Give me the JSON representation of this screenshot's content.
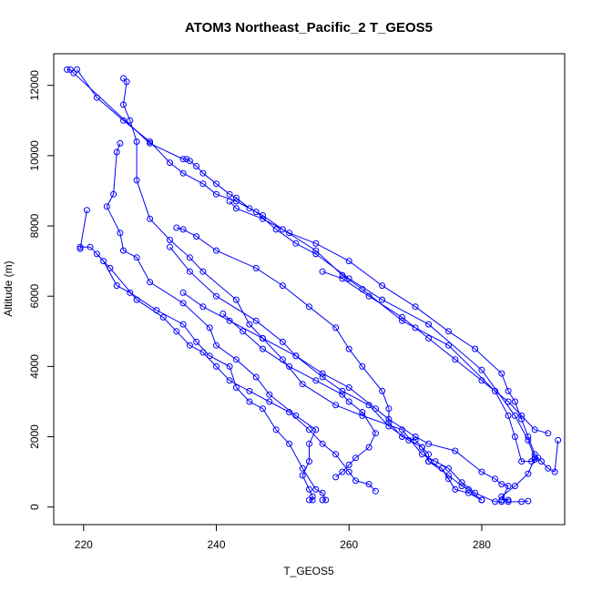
{
  "chart_data": {
    "type": "line",
    "title": "ATOM3 Northeast_Pacific_2 T_GEOS5",
    "xlabel": "T_GEOS5",
    "ylabel": "Altitude (m)",
    "xlim": [
      215.5,
      292.5
    ],
    "ylim": [
      -500,
      12900
    ],
    "x_ticks": [
      220,
      240,
      260,
      280
    ],
    "y_ticks": [
      0,
      2000,
      4000,
      6000,
      8000,
      10000,
      12000
    ],
    "grid": false,
    "legend": "none",
    "color": "#0000ff",
    "series": [
      {
        "points": [
          [
            217.5,
            12450
          ],
          [
            218,
            12450
          ],
          [
            218.5,
            12350
          ],
          [
            230,
            10350
          ],
          [
            235,
            9900
          ],
          [
            235.5,
            9900
          ],
          [
            236,
            9850
          ],
          [
            237,
            9700
          ],
          [
            238,
            9500
          ],
          [
            240,
            9200
          ],
          [
            242,
            8900
          ],
          [
            243,
            8800
          ],
          [
            245,
            8500
          ],
          [
            247,
            8300
          ],
          [
            250,
            7900
          ],
          [
            255,
            7300
          ],
          [
            259,
            6600
          ],
          [
            262,
            6200
          ],
          [
            268,
            5300
          ],
          [
            270,
            5100
          ],
          [
            275,
            4600
          ],
          [
            282,
            3300
          ],
          [
            284,
            2600
          ],
          [
            285,
            2000
          ],
          [
            286,
            1300
          ],
          [
            287.5,
            1300
          ],
          [
            288,
            1350
          ],
          [
            288.5,
            1400
          ]
        ]
      },
      {
        "points": [
          [
            219,
            12450
          ],
          [
            222,
            11650
          ],
          [
            226,
            11000
          ],
          [
            230,
            10400
          ],
          [
            233,
            9800
          ],
          [
            235,
            9500
          ],
          [
            238,
            9200
          ],
          [
            240,
            8900
          ],
          [
            243,
            8700
          ],
          [
            246,
            8400
          ],
          [
            249,
            7900
          ],
          [
            252,
            7500
          ],
          [
            255,
            7200
          ],
          [
            260,
            6500
          ],
          [
            265,
            5900
          ],
          [
            272,
            5200
          ],
          [
            280,
            3900
          ],
          [
            285,
            2600
          ],
          [
            287,
            1900
          ],
          [
            288,
            1400
          ],
          [
            287,
            950
          ],
          [
            285,
            600
          ],
          [
            283,
            300
          ],
          [
            284,
            150
          ],
          [
            286,
            150
          ],
          [
            287,
            170
          ]
        ]
      },
      {
        "points": [
          [
            226,
            12200
          ],
          [
            226.5,
            12100
          ],
          [
            226,
            11450
          ],
          [
            227,
            11000
          ],
          [
            228,
            10400
          ],
          [
            228,
            9300
          ],
          [
            230,
            8200
          ],
          [
            233,
            7600
          ],
          [
            236,
            7100
          ],
          [
            238,
            6700
          ],
          [
            243,
            5900
          ],
          [
            245,
            5200
          ],
          [
            247,
            4800
          ],
          [
            250,
            4200
          ],
          [
            253,
            3500
          ],
          [
            258,
            2900
          ],
          [
            262,
            2600
          ],
          [
            268,
            2200
          ],
          [
            271,
            1500
          ],
          [
            273,
            1300
          ],
          [
            275,
            1100
          ],
          [
            277,
            700
          ],
          [
            279,
            400
          ],
          [
            282,
            150
          ],
          [
            283,
            150
          ]
        ]
      },
      {
        "points": [
          [
            225.5,
            10350
          ],
          [
            225,
            10100
          ],
          [
            224.5,
            8900
          ],
          [
            223.5,
            8550
          ],
          [
            225.5,
            7800
          ],
          [
            226,
            7300
          ],
          [
            228,
            7100
          ],
          [
            230,
            6400
          ],
          [
            235,
            5800
          ],
          [
            239,
            5100
          ],
          [
            240,
            4600
          ],
          [
            243,
            4200
          ],
          [
            246,
            3700
          ],
          [
            248,
            3200
          ],
          [
            252,
            2600
          ],
          [
            255,
            2200
          ],
          [
            254,
            1800
          ],
          [
            254,
            1300
          ],
          [
            253,
            900
          ],
          [
            254,
            500
          ],
          [
            254.5,
            300
          ],
          [
            254.5,
            200
          ],
          [
            254,
            200
          ]
        ]
      },
      {
        "points": [
          [
            220.5,
            8450
          ],
          [
            219.5,
            7350
          ],
          [
            219.5,
            7400
          ],
          [
            221,
            7400
          ],
          [
            223,
            7000
          ],
          [
            225,
            6300
          ],
          [
            227,
            6100
          ],
          [
            231,
            5600
          ],
          [
            235,
            5200
          ],
          [
            237,
            4700
          ],
          [
            239,
            4300
          ],
          [
            242,
            4000
          ],
          [
            243,
            3400
          ],
          [
            245,
            3000
          ],
          [
            247,
            2800
          ],
          [
            249,
            2200
          ],
          [
            251,
            1800
          ],
          [
            253,
            1100
          ],
          [
            255,
            500
          ],
          [
            256,
            400
          ],
          [
            256.5,
            200
          ],
          [
            256,
            200
          ]
        ]
      },
      {
        "points": [
          [
            222,
            7200
          ],
          [
            224,
            6800
          ],
          [
            228,
            5900
          ],
          [
            232,
            5400
          ],
          [
            234,
            5000
          ],
          [
            236,
            4600
          ],
          [
            238,
            4400
          ],
          [
            240,
            4000
          ],
          [
            242,
            3600
          ],
          [
            245,
            3300
          ],
          [
            248,
            3000
          ],
          [
            251,
            2700
          ],
          [
            254,
            2200
          ],
          [
            256,
            1800
          ],
          [
            258,
            1500
          ],
          [
            260,
            1000
          ],
          [
            261,
            750
          ],
          [
            263,
            650
          ],
          [
            264,
            450
          ]
        ]
      },
      {
        "points": [
          [
            234,
            7950
          ],
          [
            235,
            7900
          ],
          [
            237,
            7700
          ],
          [
            240,
            7300
          ],
          [
            246,
            6800
          ],
          [
            250,
            6300
          ],
          [
            254,
            5700
          ],
          [
            258,
            5100
          ],
          [
            260,
            4500
          ],
          [
            262,
            4000
          ],
          [
            265,
            3300
          ],
          [
            266,
            2800
          ],
          [
            266,
            2400
          ],
          [
            268,
            2000
          ],
          [
            270,
            1900
          ],
          [
            271,
            1700
          ],
          [
            272,
            1300
          ],
          [
            275,
            900
          ],
          [
            277,
            600
          ],
          [
            278,
            500
          ],
          [
            280,
            200
          ]
        ]
      },
      {
        "points": [
          [
            235,
            6100
          ],
          [
            238,
            5700
          ],
          [
            242,
            5300
          ],
          [
            247,
            4800
          ],
          [
            252,
            4300
          ],
          [
            256,
            3700
          ],
          [
            259,
            3300
          ],
          [
            263,
            2900
          ],
          [
            266,
            2300
          ],
          [
            269,
            1900
          ],
          [
            271,
            1700
          ],
          [
            272,
            1500
          ],
          [
            272,
            1300
          ],
          [
            274,
            1100
          ],
          [
            275,
            800
          ],
          [
            276,
            500
          ],
          [
            278,
            400
          ],
          [
            280,
            200
          ]
        ]
      },
      {
        "points": [
          [
            241,
            5500
          ],
          [
            244,
            5000
          ],
          [
            247,
            4500
          ],
          [
            251,
            4000
          ],
          [
            255,
            3600
          ],
          [
            259,
            3200
          ],
          [
            260,
            3000
          ],
          [
            262,
            2700
          ],
          [
            264,
            2100
          ],
          [
            263,
            1700
          ],
          [
            261,
            1400
          ],
          [
            260,
            1200
          ],
          [
            259,
            1000
          ],
          [
            258,
            850
          ]
        ]
      },
      {
        "points": [
          [
            233,
            7400
          ],
          [
            236,
            6700
          ],
          [
            240,
            6000
          ],
          [
            246,
            5300
          ],
          [
            250,
            4700
          ],
          [
            252,
            4300
          ],
          [
            256,
            3800
          ],
          [
            260,
            3400
          ],
          [
            264,
            2800
          ],
          [
            266,
            2500
          ],
          [
            270,
            2000
          ],
          [
            272,
            1800
          ],
          [
            276,
            1600
          ],
          [
            280,
            1000
          ],
          [
            282,
            800
          ],
          [
            283,
            650
          ],
          [
            284,
            600
          ],
          [
            283,
            200
          ],
          [
            284,
            200
          ]
        ]
      },
      {
        "points": [
          [
            242,
            8700
          ],
          [
            243,
            8500
          ],
          [
            247,
            8200
          ],
          [
            251,
            7800
          ],
          [
            255,
            7500
          ],
          [
            260,
            7000
          ],
          [
            265,
            6300
          ],
          [
            270,
            5700
          ],
          [
            275,
            5000
          ],
          [
            279,
            4500
          ],
          [
            283,
            3800
          ],
          [
            284,
            3300
          ],
          [
            285,
            3000
          ],
          [
            286,
            2500
          ],
          [
            287,
            2000
          ],
          [
            288,
            1500
          ],
          [
            289,
            1300
          ],
          [
            290,
            1100
          ],
          [
            291,
            1000
          ],
          [
            291.5,
            1900
          ]
        ]
      },
      {
        "points": [
          [
            256,
            6700
          ],
          [
            259,
            6500
          ],
          [
            263,
            6000
          ],
          [
            268,
            5400
          ],
          [
            272,
            4800
          ],
          [
            276,
            4200
          ],
          [
            280,
            3600
          ],
          [
            284,
            3000
          ],
          [
            286,
            2600
          ],
          [
            288,
            2200
          ],
          [
            290,
            2100
          ]
        ]
      }
    ]
  }
}
